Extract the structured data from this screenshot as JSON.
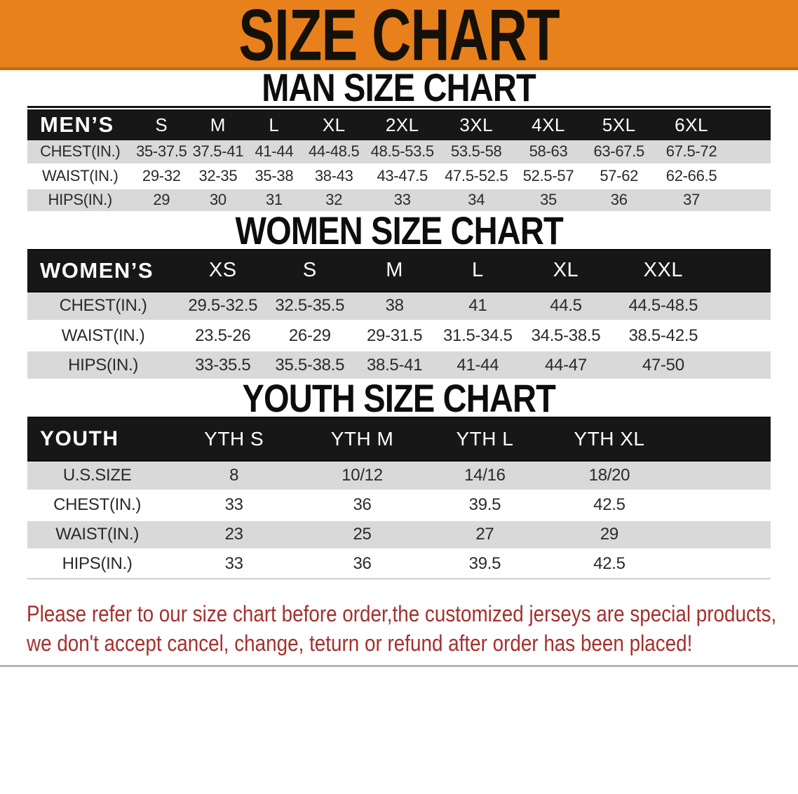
{
  "banner": {
    "title": "SIZE CHART",
    "bg_color": "#E8811C",
    "edge_color": "#BE6A15",
    "text_color": "#151008"
  },
  "sections": [
    {
      "id": "men",
      "title": "MAN SIZE CHART",
      "corner_label": "MEN’S",
      "columns": [
        "S",
        "M",
        "L",
        "XL",
        "2XL",
        "3XL",
        "4XL",
        "5XL",
        "6XL"
      ],
      "rows": [
        {
          "label": "CHEST(IN.)",
          "values": [
            "35-37.5",
            "37.5-41",
            "41-44",
            "44-48.5",
            "48.5-53.5",
            "53.5-58",
            "58-63",
            "63-67.5",
            "67.5-72"
          ]
        },
        {
          "label": "WAIST(IN.)",
          "values": [
            "29-32",
            "32-35",
            "35-38",
            "38-43",
            "43-47.5",
            "47.5-52.5",
            "52.5-57",
            "57-62",
            "62-66.5"
          ]
        },
        {
          "label": "HIPS(IN.)",
          "values": [
            "29",
            "30",
            "31",
            "32",
            "33",
            "34",
            "35",
            "36",
            "37"
          ]
        }
      ]
    },
    {
      "id": "women",
      "title": "WOMEN SIZE CHART",
      "corner_label": "WOMEN’S",
      "columns": [
        "XS",
        "S",
        "M",
        "L",
        "XL",
        "XXL"
      ],
      "rows": [
        {
          "label": "CHEST(IN.)",
          "values": [
            "29.5-32.5",
            "32.5-35.5",
            "38",
            "41",
            "44.5",
            "44.5-48.5"
          ]
        },
        {
          "label": "WAIST(IN.)",
          "values": [
            "23.5-26",
            "26-29",
            "29-31.5",
            "31.5-34.5",
            "34.5-38.5",
            "38.5-42.5"
          ]
        },
        {
          "label": "HIPS(IN.)",
          "values": [
            "33-35.5",
            "35.5-38.5",
            "38.5-41",
            "41-44",
            "44-47",
            "47-50"
          ]
        }
      ]
    },
    {
      "id": "youth",
      "title": "YOUTH SIZE CHART",
      "corner_label": "YOUTH",
      "columns": [
        "YTH S",
        "YTH M",
        "YTH L",
        "YTH XL"
      ],
      "rows": [
        {
          "label": "U.S.SIZE",
          "values": [
            "8",
            "10/12",
            "14/16",
            "18/20"
          ]
        },
        {
          "label": "CHEST(IN.)",
          "values": [
            "33",
            "36",
            "39.5",
            "42.5"
          ]
        },
        {
          "label": "WAIST(IN.)",
          "values": [
            "23",
            "25",
            "27",
            "29"
          ]
        },
        {
          "label": "HIPS(IN.)",
          "values": [
            "33",
            "36",
            "39.5",
            "42.5"
          ]
        }
      ]
    }
  ],
  "disclaimer": {
    "line1": "Please refer to our size chart before order,the customized jerseys are special products,",
    "line2": "we don't accept cancel, change, teturn or refund after order has been placed!",
    "color": "#A5302C"
  },
  "colors": {
    "header_row_black": "#171717",
    "row_gray": "#D9D9D9",
    "table_text": "#2A2A2A"
  }
}
